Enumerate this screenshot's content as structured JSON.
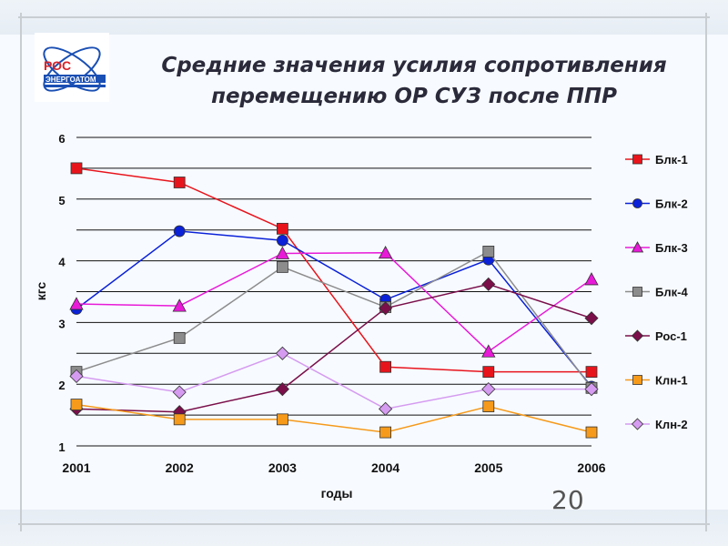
{
  "header": {
    "title_line1": "Средние значения усилия сопротивления",
    "title_line2": "перемещению ОР СУЗ после ППР",
    "logo_text_top": "РОС",
    "logo_text_bottom": "ЭНЕРГОАТОМ"
  },
  "page_number": "20",
  "colors": {
    "accent_blue": "#1a4fb3",
    "logo_red": "#d8232a"
  },
  "chart_data": {
    "type": "line",
    "title": "",
    "xlabel": "годы",
    "ylabel": "кгс",
    "x": [
      "2001",
      "2002",
      "2003",
      "2004",
      "2005",
      "2006"
    ],
    "ylim": [
      1,
      6
    ],
    "yticks": [
      "1",
      "2",
      "3",
      "4",
      "5",
      "6"
    ],
    "grid": "horizontal",
    "legend_position": "right",
    "series": [
      {
        "name": "Блк-1",
        "color": "#e8141c",
        "marker": "square",
        "values": [
          5.5,
          5.27,
          4.52,
          2.28,
          2.2,
          2.2
        ]
      },
      {
        "name": "Блк-2",
        "color": "#0a21d8",
        "marker": "circle",
        "values": [
          3.22,
          4.48,
          4.33,
          3.37,
          4.02,
          1.96
        ]
      },
      {
        "name": "Блк-3",
        "color": "#e81ad8",
        "marker": "triangle",
        "values": [
          3.3,
          3.27,
          4.12,
          4.13,
          2.53,
          3.7
        ]
      },
      {
        "name": "Блк-4",
        "color": "#8c8c8c",
        "marker": "square",
        "values": [
          2.2,
          2.75,
          3.9,
          3.25,
          4.15,
          1.94
        ]
      },
      {
        "name": "Рос-1",
        "color": "#7a0f4a",
        "marker": "diamond",
        "values": [
          1.6,
          1.55,
          1.92,
          3.23,
          3.62,
          3.07
        ]
      },
      {
        "name": "Клн-1",
        "color": "#f59a1a",
        "marker": "square",
        "values": [
          1.67,
          1.43,
          1.43,
          1.22,
          1.64,
          1.22
        ]
      },
      {
        "name": "Клн-2",
        "color": "#d59bf0",
        "marker": "diamond",
        "values": [
          2.13,
          1.87,
          2.5,
          1.6,
          1.92,
          1.92
        ]
      }
    ]
  }
}
